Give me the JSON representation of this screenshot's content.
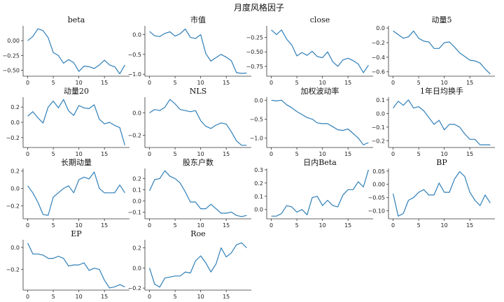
{
  "title": "月度风格因子",
  "colors": {
    "line": "#2f7fb8",
    "axis": "#333333"
  },
  "chart_data": [
    {
      "type": "line",
      "title": "beta",
      "x": [
        0,
        1,
        2,
        3,
        4,
        5,
        6,
        7,
        8,
        9,
        10,
        11,
        12,
        13,
        14,
        15,
        16,
        17,
        18,
        19
      ],
      "y": [
        0.0,
        0.07,
        0.2,
        0.17,
        0.05,
        -0.2,
        -0.25,
        -0.38,
        -0.32,
        -0.37,
        -0.52,
        -0.43,
        -0.44,
        -0.47,
        -0.41,
        -0.33,
        -0.41,
        -0.44,
        -0.56,
        -0.41
      ],
      "ylim": [
        -0.6,
        0.25
      ],
      "yticks": [
        -0.5,
        -0.25,
        0.0
      ],
      "ytick_labels": [
        "−0.50",
        "−0.25",
        "0.00"
      ],
      "xticks": [
        0,
        5,
        10,
        15
      ],
      "xlim": [
        -0.9,
        19.9
      ]
    },
    {
      "type": "line",
      "title": "市值",
      "x": [
        0,
        1,
        2,
        3,
        4,
        5,
        6,
        7,
        8,
        9,
        10,
        11,
        12,
        13,
        14,
        15,
        16,
        17,
        18,
        19
      ],
      "y": [
        0.08,
        -0.03,
        -0.05,
        0.03,
        0.07,
        -0.04,
        0.02,
        0.14,
        -0.07,
        -0.1,
        0.0,
        -0.48,
        -0.67,
        -0.58,
        -0.5,
        -0.57,
        -0.66,
        -0.96,
        -0.98,
        -0.97
      ],
      "ylim": [
        -1.05,
        0.22
      ],
      "yticks": [
        -1.0,
        -0.5,
        0.0
      ],
      "ytick_labels": [
        "−1.0",
        "−0.5",
        "0.0"
      ],
      "xticks": [
        0,
        5,
        10,
        15
      ],
      "xlim": [
        -0.9,
        19.9
      ]
    },
    {
      "type": "line",
      "title": "close",
      "x": [
        0,
        1,
        2,
        3,
        4,
        5,
        6,
        7,
        8,
        9,
        10,
        11,
        12,
        13,
        14,
        15,
        16,
        17,
        18,
        19
      ],
      "y": [
        -0.12,
        -0.2,
        -0.12,
        -0.28,
        -0.38,
        -0.57,
        -0.51,
        -0.56,
        -0.49,
        -0.58,
        -0.6,
        -0.5,
        -0.67,
        -0.75,
        -0.64,
        -0.61,
        -0.65,
        -0.71,
        -0.86,
        -0.73
      ],
      "ylim": [
        -0.92,
        -0.05
      ],
      "yticks": [
        -0.75,
        -0.5,
        -0.25
      ],
      "ytick_labels": [
        "−0.75",
        "−0.50",
        "−0.25"
      ],
      "xticks": [
        0,
        5,
        10,
        15
      ],
      "xlim": [
        -0.9,
        19.9
      ]
    },
    {
      "type": "line",
      "title": "动量5",
      "x": [
        0,
        1,
        2,
        3,
        4,
        5,
        6,
        7,
        8,
        9,
        10,
        11,
        12,
        13,
        14,
        15,
        16,
        17,
        18,
        19
      ],
      "y": [
        -0.04,
        -0.09,
        -0.14,
        -0.12,
        -0.04,
        -0.14,
        -0.18,
        -0.19,
        -0.28,
        -0.28,
        -0.2,
        -0.19,
        -0.26,
        -0.34,
        -0.39,
        -0.44,
        -0.45,
        -0.48,
        -0.56,
        -0.63
      ],
      "ylim": [
        -0.66,
        0.03
      ],
      "yticks": [
        -0.6,
        -0.4,
        -0.2,
        0.0
      ],
      "ytick_labels": [
        "−0.6",
        "−0.4",
        "−0.2",
        "0.0"
      ],
      "xticks": [
        0,
        5,
        10,
        15
      ],
      "xlim": [
        -0.9,
        19.9
      ]
    },
    {
      "type": "line",
      "title": "动量20",
      "x": [
        0,
        1,
        2,
        3,
        4,
        5,
        6,
        7,
        8,
        9,
        10,
        11,
        12,
        13,
        14,
        15,
        16,
        17,
        18,
        19
      ],
      "y": [
        0.08,
        0.14,
        0.06,
        -0.01,
        0.2,
        0.28,
        0.19,
        0.3,
        0.15,
        0.09,
        0.22,
        0.19,
        0.18,
        0.23,
        0.04,
        -0.02,
        0.0,
        -0.04,
        -0.07,
        -0.3
      ],
      "ylim": [
        -0.33,
        0.33
      ],
      "yticks": [
        -0.2,
        0.0,
        0.2
      ],
      "ytick_labels": [
        "−0.2",
        "0.0",
        "0.2"
      ],
      "xticks": [
        0,
        5,
        10,
        15
      ],
      "xlim": [
        -0.9,
        19.9
      ]
    },
    {
      "type": "line",
      "title": "NLS",
      "x": [
        0,
        1,
        2,
        3,
        4,
        5,
        6,
        7,
        8,
        9,
        10,
        11,
        12,
        13,
        14,
        15,
        16,
        17,
        18,
        19
      ],
      "y": [
        0.0,
        0.03,
        0.02,
        0.05,
        0.12,
        0.08,
        0.03,
        0.02,
        0.01,
        0.02,
        -0.07,
        -0.12,
        -0.14,
        -0.11,
        -0.09,
        -0.1,
        -0.17,
        -0.25,
        -0.29,
        -0.29
      ],
      "ylim": [
        -0.31,
        0.14
      ],
      "yticks": [
        -0.2,
        0.0
      ],
      "ytick_labels": [
        "−0.2",
        "0.0"
      ],
      "xticks": [
        0,
        5,
        10,
        15
      ],
      "xlim": [
        -0.9,
        19.9
      ]
    },
    {
      "type": "line",
      "title": "加权波动率",
      "x": [
        0,
        1,
        2,
        3,
        4,
        5,
        6,
        7,
        8,
        9,
        10,
        11,
        12,
        13,
        14,
        15,
        16,
        17,
        18,
        19
      ],
      "y": [
        0.0,
        -0.02,
        0.0,
        -0.12,
        -0.2,
        -0.3,
        -0.38,
        -0.46,
        -0.5,
        -0.6,
        -0.62,
        -0.62,
        -0.7,
        -0.78,
        -0.8,
        -0.76,
        -0.88,
        -1.0,
        -1.18,
        -1.12
      ],
      "ylim": [
        -1.25,
        0.08
      ],
      "yticks": [
        -1.0,
        -0.5,
        0.0
      ],
      "ytick_labels": [
        "−1.0",
        "−0.5",
        "0.0"
      ],
      "xticks": [
        0,
        5,
        10,
        15
      ],
      "xlim": [
        -0.9,
        19.9
      ]
    },
    {
      "type": "line",
      "title": "1年日均换手",
      "x": [
        0,
        1,
        2,
        3,
        4,
        5,
        6,
        7,
        8,
        9,
        10,
        11,
        12,
        13,
        14,
        15,
        16,
        17,
        18,
        19
      ],
      "y": [
        0.04,
        0.09,
        0.06,
        0.1,
        0.04,
        0.05,
        0.02,
        -0.03,
        -0.08,
        -0.05,
        -0.12,
        -0.08,
        -0.08,
        -0.1,
        -0.15,
        -0.19,
        -0.19,
        -0.23,
        -0.23,
        -0.23
      ],
      "ylim": [
        -0.25,
        0.12
      ],
      "yticks": [
        -0.2,
        -0.1,
        0.0,
        0.1
      ],
      "ytick_labels": [
        "−0.2",
        "−0.1",
        "0.0",
        "0.1"
      ],
      "xticks": [
        0,
        5,
        10,
        15
      ],
      "xlim": [
        -0.9,
        19.9
      ]
    },
    {
      "type": "line",
      "title": "长期动量",
      "x": [
        0,
        1,
        2,
        3,
        4,
        5,
        6,
        7,
        8,
        9,
        10,
        11,
        12,
        13,
        14,
        15,
        16,
        17,
        18,
        19
      ],
      "y": [
        0.03,
        -0.05,
        -0.16,
        -0.3,
        -0.31,
        -0.1,
        -0.05,
        0.0,
        0.03,
        -0.05,
        0.1,
        0.13,
        0.11,
        0.19,
        0.0,
        -0.05,
        -0.05,
        -0.05,
        0.04,
        -0.05
      ],
      "ylim": [
        -0.35,
        0.23
      ],
      "yticks": [
        -0.2,
        0.0,
        0.2
      ],
      "ytick_labels": [
        "−0.2",
        "0.0",
        "0.2"
      ],
      "xticks": [
        0,
        5,
        10,
        15
      ],
      "xlim": [
        -0.9,
        19.9
      ]
    },
    {
      "type": "line",
      "title": "股东户数",
      "x": [
        0,
        1,
        2,
        3,
        4,
        5,
        6,
        7,
        8,
        9,
        10,
        11,
        12,
        13,
        14,
        15,
        16,
        17,
        18,
        19
      ],
      "y": [
        0.09,
        0.19,
        0.2,
        0.27,
        0.22,
        0.2,
        0.16,
        0.08,
        -0.01,
        -0.01,
        -0.07,
        -0.07,
        -0.03,
        -0.07,
        -0.11,
        -0.11,
        -0.1,
        -0.13,
        -0.14,
        -0.13
      ],
      "ylim": [
        -0.16,
        0.29
      ],
      "yticks": [
        -0.1,
        0.0,
        0.1,
        0.2
      ],
      "ytick_labels": [
        "−0.1",
        "0.0",
        "0.1",
        "0.2"
      ],
      "xticks": [
        0,
        5,
        10,
        15
      ],
      "xlim": [
        -0.9,
        19.9
      ]
    },
    {
      "type": "line",
      "title": "日内Beta",
      "x": [
        0,
        1,
        2,
        3,
        4,
        5,
        6,
        7,
        8,
        9,
        10,
        11,
        12,
        13,
        14,
        15,
        16,
        17,
        18,
        19
      ],
      "y": [
        -0.05,
        -0.05,
        -0.03,
        0.03,
        0.02,
        -0.02,
        0.0,
        -0.04,
        0.09,
        0.1,
        0.03,
        0.07,
        0.03,
        0.02,
        0.11,
        0.15,
        0.15,
        0.21,
        0.17,
        0.3
      ],
      "ylim": [
        -0.07,
        0.31
      ],
      "yticks": [
        0.0,
        0.1,
        0.2,
        0.3
      ],
      "ytick_labels": [
        "0.0",
        "0.1",
        "0.2",
        "0.3"
      ],
      "xticks": [
        0,
        5,
        10,
        15
      ],
      "xlim": [
        -0.9,
        19.9
      ]
    },
    {
      "type": "line",
      "title": "BP",
      "x": [
        0,
        1,
        2,
        3,
        4,
        5,
        6,
        7,
        8,
        9,
        10,
        11,
        12,
        13,
        14,
        15,
        16,
        17,
        18,
        19
      ],
      "y": [
        -0.035,
        -0.12,
        -0.11,
        -0.06,
        -0.05,
        -0.03,
        -0.02,
        -0.04,
        -0.04,
        0.005,
        -0.03,
        -0.03,
        0.02,
        0.048,
        0.03,
        -0.03,
        -0.06,
        -0.08,
        -0.04,
        -0.07
      ],
      "ylim": [
        -0.13,
        0.06
      ],
      "yticks": [
        -0.1,
        -0.05,
        0.0,
        0.05
      ],
      "ytick_labels": [
        "−0.10",
        "−0.05",
        "0.00",
        "0.05"
      ],
      "xticks": [
        0,
        5,
        10,
        15
      ],
      "xlim": [
        -0.9,
        19.9
      ]
    },
    {
      "type": "line",
      "title": "EP",
      "x": [
        0,
        1,
        2,
        3,
        4,
        5,
        6,
        7,
        8,
        9,
        10,
        11,
        12,
        13,
        14,
        15,
        16,
        17,
        18,
        19
      ],
      "y": [
        0.04,
        -0.06,
        -0.06,
        -0.07,
        -0.1,
        -0.1,
        -0.08,
        -0.1,
        -0.17,
        -0.16,
        -0.16,
        -0.14,
        -0.21,
        -0.19,
        -0.2,
        -0.3,
        -0.37,
        -0.36,
        -0.34,
        -0.36
      ],
      "ylim": [
        -0.39,
        0.07
      ],
      "yticks": [
        -0.2,
        0.0
      ],
      "ytick_labels": [
        "−0.2",
        "0.0"
      ],
      "xticks": [
        0,
        5,
        10,
        15
      ],
      "xlim": [
        -0.9,
        19.9
      ]
    },
    {
      "type": "line",
      "title": "Roe",
      "x": [
        0,
        1,
        2,
        3,
        4,
        5,
        6,
        7,
        8,
        9,
        10,
        11,
        12,
        13,
        14,
        15,
        16,
        17,
        18,
        19
      ],
      "y": [
        0.0,
        -0.16,
        -0.19,
        -0.1,
        -0.09,
        -0.08,
        -0.08,
        -0.04,
        -0.05,
        0.07,
        0.12,
        0.05,
        -0.04,
        0.04,
        0.2,
        0.11,
        0.15,
        0.23,
        0.25,
        0.2
      ],
      "ylim": [
        -0.22,
        0.28
      ],
      "yticks": [
        -0.2,
        0.0,
        0.2
      ],
      "ytick_labels": [
        "−0.2",
        "0.0",
        "0.2"
      ],
      "xticks": [
        0,
        5,
        10,
        15
      ],
      "xlim": [
        -0.9,
        19.9
      ]
    }
  ]
}
